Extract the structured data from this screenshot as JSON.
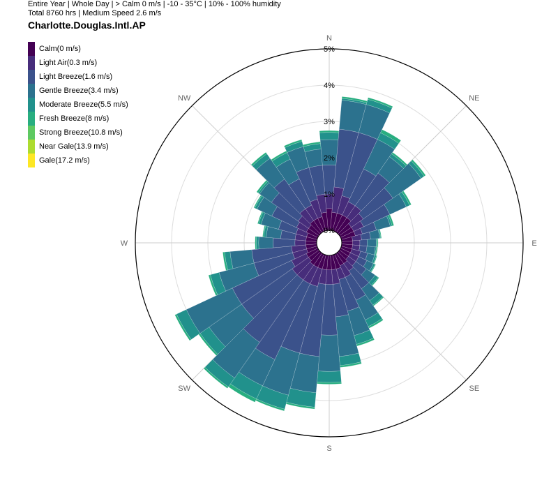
{
  "header": {
    "line1": "Entire Year | Whole Day | > Calm 0 m/s | -10 - 35°C | 10% - 100% humidity",
    "line2": "Total 8760 hrs | Medium Speed 2.6 m/s",
    "station": "Charlotte.Douglas.Intl.AP"
  },
  "chart_data": {
    "type": "wind-rose (stacked polar bar)",
    "radial_unit": "%",
    "radial_range": [
      0,
      5
    ],
    "radial_ticks": [
      "0%",
      "1%",
      "2%",
      "3%",
      "4%",
      "5%"
    ],
    "direction_labels": [
      "N",
      "NE",
      "E",
      "SE",
      "S",
      "SW",
      "W",
      "NW"
    ],
    "sectors": 36,
    "sector_width_deg": 10,
    "legend": [
      {
        "label": "Calm(0 m/s)",
        "color": "#440154"
      },
      {
        "label": "Light Air(0.3 m/s)",
        "color": "#472d7b"
      },
      {
        "label": "Light Breeze(1.6 m/s)",
        "color": "#3b528b"
      },
      {
        "label": "Gentle Breeze(3.4 m/s)",
        "color": "#2c728e"
      },
      {
        "label": "Moderate Breeze(5.5 m/s)",
        "color": "#21918c"
      },
      {
        "label": "Fresh Breeze(8 m/s)",
        "color": "#28ae80"
      },
      {
        "label": "Strong Breeze(10.8 m/s)",
        "color": "#5ec962"
      },
      {
        "label": "Near Gale(13.9 m/s)",
        "color": "#addc30"
      },
      {
        "label": "Gale(17.2 m/s)",
        "color": "#fde725"
      }
    ],
    "directions_deg": [
      0,
      10,
      20,
      30,
      40,
      50,
      60,
      70,
      80,
      90,
      100,
      110,
      120,
      130,
      140,
      150,
      160,
      170,
      180,
      190,
      200,
      210,
      220,
      230,
      240,
      250,
      260,
      270,
      280,
      290,
      300,
      310,
      320,
      330,
      340,
      350
    ],
    "cumulative_percent": [
      [
        0.6,
        1.0,
        1.8,
        2.5,
        2.7,
        2.75
      ],
      [
        0.5,
        1.2,
        2.8,
        3.6,
        3.65,
        3.7
      ],
      [
        0.5,
        1.0,
        2.8,
        3.6,
        3.75,
        3.8
      ],
      [
        0.5,
        0.9,
        1.9,
        2.8,
        3.0,
        3.1
      ],
      [
        0.5,
        0.9,
        2.0,
        2.55,
        2.65,
        2.7
      ],
      [
        0.4,
        0.8,
        1.8,
        2.75,
        2.85,
        2.9
      ],
      [
        0.4,
        0.7,
        1.5,
        2.0,
        2.1,
        2.15
      ],
      [
        0.4,
        0.6,
        1.0,
        1.4,
        1.45,
        1.5
      ],
      [
        0.3,
        0.55,
        0.8,
        1.05,
        1.08,
        1.1
      ],
      [
        0.3,
        0.5,
        0.7,
        0.95,
        0.97,
        1.0
      ],
      [
        0.3,
        0.5,
        0.7,
        0.93,
        0.96,
        0.99
      ],
      [
        0.3,
        0.55,
        0.75,
        0.95,
        1.0,
        1.02
      ],
      [
        0.3,
        0.55,
        0.8,
        1.0,
        1.05,
        1.07
      ],
      [
        0.3,
        0.55,
        0.9,
        1.2,
        1.3,
        1.33
      ],
      [
        0.35,
        0.6,
        1.2,
        1.6,
        1.75,
        1.78
      ],
      [
        0.35,
        0.7,
        1.4,
        2.0,
        2.2,
        2.25
      ],
      [
        0.4,
        0.7,
        1.6,
        2.3,
        2.55,
        2.6
      ],
      [
        0.4,
        0.8,
        1.7,
        2.8,
        3.05,
        3.1
      ],
      [
        0.4,
        0.8,
        2.2,
        3.2,
        3.5,
        3.55
      ],
      [
        0.4,
        0.8,
        2.8,
        3.8,
        4.2,
        4.25
      ],
      [
        0.4,
        0.9,
        2.8,
        4.0,
        4.4,
        4.45
      ],
      [
        0.4,
        0.9,
        3.2,
        4.0,
        4.4,
        4.5
      ],
      [
        0.4,
        0.9,
        3.0,
        4.2,
        4.5,
        4.55
      ],
      [
        0.35,
        0.9,
        2.6,
        3.7,
        4.0,
        4.05
      ],
      [
        0.35,
        0.8,
        2.6,
        4.0,
        4.3,
        4.35
      ],
      [
        0.3,
        0.7,
        1.8,
        2.8,
        3.05,
        3.1
      ],
      [
        0.3,
        0.7,
        1.8,
        2.4,
        2.55,
        2.6
      ],
      [
        0.3,
        0.6,
        1.2,
        1.6,
        1.67,
        1.7
      ],
      [
        0.3,
        0.6,
        1.0,
        1.4,
        1.47,
        1.5
      ],
      [
        0.3,
        0.6,
        1.1,
        1.6,
        1.67,
        1.7
      ],
      [
        0.35,
        0.65,
        1.4,
        1.85,
        1.92,
        1.95
      ],
      [
        0.35,
        0.7,
        1.6,
        2.0,
        2.05,
        2.1
      ],
      [
        0.4,
        0.8,
        1.8,
        2.5,
        2.65,
        2.7
      ],
      [
        0.4,
        0.8,
        1.6,
        2.2,
        2.4,
        2.45
      ],
      [
        0.4,
        0.9,
        1.8,
        2.4,
        2.55,
        2.6
      ],
      [
        0.5,
        1.0,
        1.8,
        2.25,
        2.4,
        2.45
      ]
    ]
  }
}
